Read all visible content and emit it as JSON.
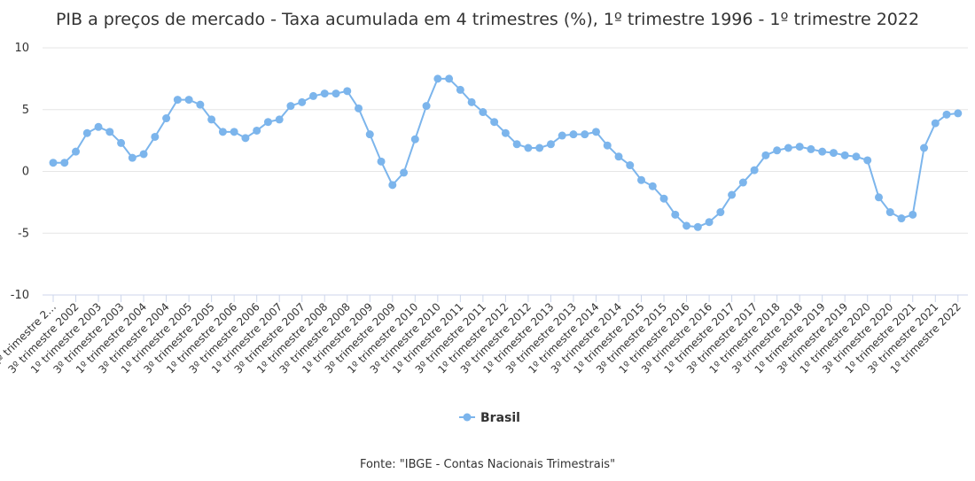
{
  "chart_data": {
    "type": "line",
    "title": "PIB a preços de mercado - Taxa acumulada em 4 trimestres (%), 1º trimestre 1996 - 1º trimestre 2022",
    "categories": [
      "1º trimestre 2…",
      null,
      "3º trimestre 2002",
      null,
      "1º trimestre 2003",
      null,
      "3º trimestre 2003",
      null,
      "1º trimestre 2004",
      null,
      "3º trimestre 2004",
      null,
      "1º trimestre 2005",
      null,
      "3º trimestre 2005",
      null,
      "1º trimestre 2006",
      null,
      "3º trimestre 2006",
      null,
      "1º trimestre 2007",
      null,
      "3º trimestre 2007",
      null,
      "1º trimestre 2008",
      null,
      "3º trimestre 2008",
      null,
      "1º trimestre 2009",
      null,
      "3º trimestre 2009",
      null,
      "1º trimestre 2010",
      null,
      "3º trimestre 2010",
      null,
      "1º trimestre 2011",
      null,
      "3º trimestre 2011",
      null,
      "1º trimestre 2012",
      null,
      "3º trimestre 2012",
      null,
      "1º trimestre 2013",
      null,
      "3º trimestre 2013",
      null,
      "1º trimestre 2014",
      null,
      "3º trimestre 2014",
      null,
      "1º trimestre 2015",
      null,
      "3º trimestre 2015",
      null,
      "1º trimestre 2016",
      null,
      "3º trimestre 2016",
      null,
      "1º trimestre 2017",
      null,
      "3º trimestre 2017",
      null,
      "1º trimestre 2018",
      null,
      "3º trimestre 2018",
      null,
      "1º trimestre 2019",
      null,
      "3º trimestre 2019",
      null,
      "1º trimestre 2020",
      null,
      "3º trimestre 2020",
      null,
      "1º trimestre 2021",
      null,
      "3º trimestre 2021",
      null,
      "1º trimestre 2022"
    ],
    "series": [
      {
        "name": "Brasil",
        "color": "#7cb5ec",
        "values": [
          0.7,
          0.7,
          1.6,
          3.1,
          3.6,
          3.2,
          2.3,
          1.1,
          1.4,
          2.8,
          4.3,
          5.8,
          5.8,
          5.4,
          4.2,
          3.2,
          3.2,
          2.7,
          3.3,
          4.0,
          4.2,
          5.3,
          5.6,
          6.1,
          6.3,
          6.3,
          6.5,
          5.1,
          3.0,
          0.8,
          -1.1,
          -0.1,
          2.6,
          5.3,
          7.5,
          7.5,
          6.6,
          5.6,
          4.8,
          4.0,
          3.1,
          2.2,
          1.9,
          1.9,
          2.2,
          2.9,
          3.0,
          3.0,
          3.2,
          2.1,
          1.2,
          0.5,
          -0.7,
          -1.2,
          -2.2,
          -3.5,
          -4.4,
          -4.5,
          -4.1,
          -3.3,
          -1.9,
          -0.9,
          0.1,
          1.3,
          1.7,
          1.9,
          2.0,
          1.8,
          1.6,
          1.5,
          1.3,
          1.2,
          0.9,
          -2.1,
          -3.3,
          -3.8,
          -3.5,
          1.9,
          3.9,
          4.6,
          4.7
        ]
      }
    ],
    "ylim": [
      -10,
      10
    ],
    "yticks": [
      -10,
      -5,
      0,
      5,
      10
    ],
    "grid": true,
    "source": "Fonte: \"IBGE - Contas Nacionais Trimestrais\""
  }
}
